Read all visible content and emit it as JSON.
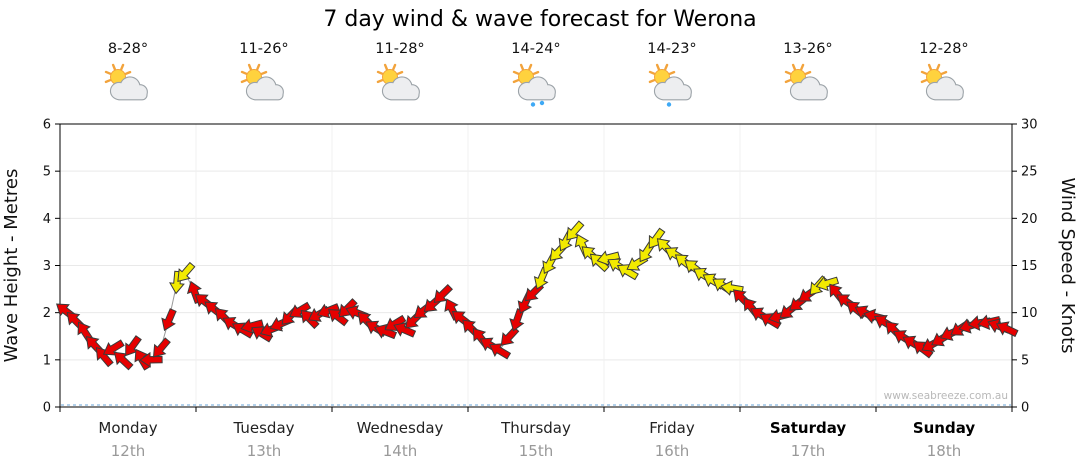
{
  "title": "7 day wind & wave forecast for Werona",
  "days": [
    {
      "name": "Monday",
      "date": "12th",
      "temp": "8-28°",
      "icon": "sun-cloud",
      "rain_drops": 0
    },
    {
      "name": "Tuesday",
      "date": "13th",
      "temp": "11-26°",
      "icon": "sun-cloud",
      "rain_drops": 0
    },
    {
      "name": "Wednesday",
      "date": "14th",
      "temp": "11-28°",
      "icon": "sun-cloud",
      "rain_drops": 0
    },
    {
      "name": "Thursday",
      "date": "15th",
      "temp": "14-24°",
      "icon": "sun-cloud-rain",
      "rain_drops": 2
    },
    {
      "name": "Friday",
      "date": "16th",
      "temp": "14-23°",
      "icon": "sun-cloud-rain",
      "rain_drops": 1
    },
    {
      "name": "Saturday",
      "date": "17th",
      "temp": "13-26°",
      "icon": "sun-cloud",
      "rain_drops": 0
    },
    {
      "name": "Sunday",
      "date": "18th",
      "temp": "12-28°",
      "icon": "sun-cloud",
      "rain_drops": 0
    }
  ],
  "chart_data": {
    "type": "line",
    "marker": "wind-arrow",
    "title": "7 day wind & wave forecast for Werona",
    "ylabel_left": "Wave Height - Metres",
    "ylabel_right": "Wind Speed - Knots",
    "ylim_left": [
      0,
      6
    ],
    "ylim_right": [
      0,
      30
    ],
    "left_ticks": [
      0,
      1,
      2,
      3,
      4,
      5,
      6
    ],
    "right_ticks": [
      0,
      5,
      10,
      15,
      20,
      25,
      30
    ],
    "x_categories": [
      "Monday 12th",
      "Tuesday 13th",
      "Wednesday 14th",
      "Thursday 15th",
      "Friday 16th",
      "Saturday 17th",
      "Sunday 18th"
    ],
    "yellow_threshold_knots": 12.5,
    "colors": {
      "low_wind": "#e60000",
      "high_wind": "#f2ea00",
      "outline": "#3a3a3a",
      "wave_line": "#999999",
      "baseline": "#6aa5d8"
    },
    "watermark": "www.seabreeze.com.au",
    "wind_knots": [
      [
        0.04,
        10.2
      ],
      [
        0.11,
        9.2
      ],
      [
        0.18,
        8.0
      ],
      [
        0.25,
        6.6
      ],
      [
        0.32,
        5.4
      ],
      [
        0.39,
        6.2
      ],
      [
        0.46,
        5.0
      ],
      [
        0.53,
        6.4
      ],
      [
        0.6,
        5.1
      ],
      [
        0.67,
        5.0
      ],
      [
        0.74,
        6.2
      ],
      [
        0.8,
        9.2
      ],
      [
        0.86,
        13.2
      ],
      [
        0.92,
        14.2
      ],
      [
        0.99,
        12.2
      ],
      [
        1.06,
        11.2
      ],
      [
        1.13,
        10.4
      ],
      [
        1.2,
        9.6
      ],
      [
        1.27,
        8.8
      ],
      [
        1.34,
        8.2
      ],
      [
        1.41,
        8.6
      ],
      [
        1.48,
        7.8
      ],
      [
        1.55,
        8.2
      ],
      [
        1.62,
        8.8
      ],
      [
        1.69,
        9.6
      ],
      [
        1.76,
        10.2
      ],
      [
        1.83,
        9.4
      ],
      [
        1.9,
        9.8
      ],
      [
        1.97,
        10.2
      ],
      [
        2.04,
        9.6
      ],
      [
        2.11,
        10.4
      ],
      [
        2.18,
        10.0
      ],
      [
        2.25,
        9.2
      ],
      [
        2.32,
        8.4
      ],
      [
        2.39,
        8.0
      ],
      [
        2.46,
        8.8
      ],
      [
        2.53,
        8.2
      ],
      [
        2.6,
        9.2
      ],
      [
        2.67,
        10.2
      ],
      [
        2.74,
        10.9
      ],
      [
        2.81,
        11.9
      ],
      [
        2.88,
        10.4
      ],
      [
        2.95,
        9.4
      ],
      [
        3.02,
        8.4
      ],
      [
        3.09,
        7.4
      ],
      [
        3.16,
        6.6
      ],
      [
        3.23,
        6.0
      ],
      [
        3.3,
        7.4
      ],
      [
        3.36,
        9.2
      ],
      [
        3.42,
        11.0
      ],
      [
        3.48,
        12.1
      ],
      [
        3.54,
        13.6
      ],
      [
        3.6,
        15.2
      ],
      [
        3.66,
        16.4
      ],
      [
        3.72,
        17.6
      ],
      [
        3.78,
        18.6
      ],
      [
        3.84,
        17.2
      ],
      [
        3.9,
        16.2
      ],
      [
        3.96,
        15.4
      ],
      [
        4.03,
        15.8
      ],
      [
        4.1,
        15.0
      ],
      [
        4.17,
        14.4
      ],
      [
        4.24,
        15.2
      ],
      [
        4.31,
        16.4
      ],
      [
        4.38,
        17.8
      ],
      [
        4.45,
        17.0
      ],
      [
        4.52,
        16.2
      ],
      [
        4.59,
        15.4
      ],
      [
        4.66,
        14.8
      ],
      [
        4.73,
        14.0
      ],
      [
        4.8,
        13.4
      ],
      [
        4.87,
        12.9
      ],
      [
        4.94,
        12.6
      ],
      [
        5.01,
        11.6
      ],
      [
        5.08,
        10.6
      ],
      [
        5.15,
        9.8
      ],
      [
        5.22,
        9.2
      ],
      [
        5.29,
        9.6
      ],
      [
        5.36,
        10.2
      ],
      [
        5.43,
        11.0
      ],
      [
        5.5,
        11.9
      ],
      [
        5.57,
        12.8
      ],
      [
        5.64,
        13.1
      ],
      [
        5.71,
        12.1
      ],
      [
        5.78,
        11.2
      ],
      [
        5.85,
        10.4
      ],
      [
        5.92,
        10.0
      ],
      [
        5.99,
        9.6
      ],
      [
        6.06,
        9.0
      ],
      [
        6.13,
        8.2
      ],
      [
        6.2,
        7.4
      ],
      [
        6.27,
        6.8
      ],
      [
        6.34,
        6.2
      ],
      [
        6.41,
        6.6
      ],
      [
        6.48,
        7.2
      ],
      [
        6.55,
        7.8
      ],
      [
        6.62,
        8.3
      ],
      [
        6.69,
        8.6
      ],
      [
        6.76,
        8.9
      ],
      [
        6.83,
        9.0
      ],
      [
        6.9,
        8.6
      ],
      [
        6.96,
        8.3
      ]
    ]
  }
}
